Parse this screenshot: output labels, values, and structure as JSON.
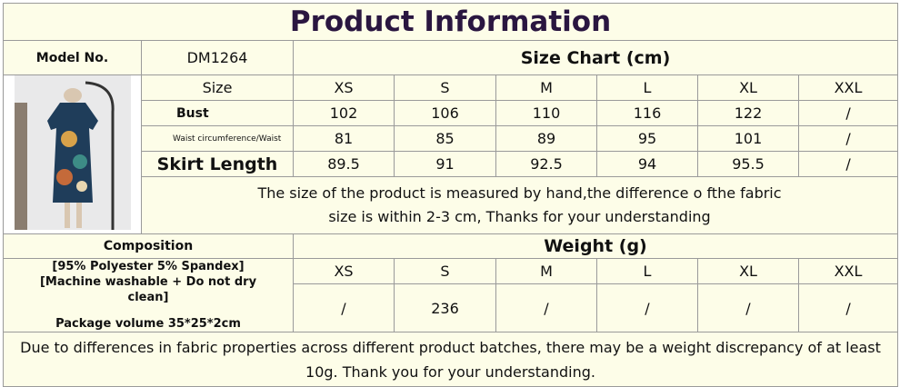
{
  "header": {
    "title": "Product Information"
  },
  "model": {
    "label": "Model No.",
    "value": "DM1264"
  },
  "size_chart": {
    "title": "Size Chart (cm)",
    "header": [
      "Size",
      "XS",
      "S",
      "M",
      "L",
      "XL",
      "XXL"
    ],
    "rows": [
      [
        "Bust",
        "102",
        "106",
        "110",
        "116",
        "122",
        "/"
      ],
      [
        "Waist circumference/Waist",
        "81",
        "85",
        "89",
        "95",
        "101",
        "/"
      ],
      [
        "Skirt Length",
        "89.5",
        "91",
        "92.5",
        "94",
        "95.5",
        "/"
      ]
    ],
    "note": "The size of the product is measured by hand,the difference o fthe fabric size is within 2-3 cm, Thanks for your understanding"
  },
  "composition": {
    "label": "Composition",
    "material": "[95% Polyester 5% Spandex] [Machine washable + Do not dry clean]",
    "package": "Package volume 35*25*2cm"
  },
  "weight": {
    "title": "Weight (g)",
    "sizes": [
      "XS",
      "S",
      "M",
      "L",
      "XL",
      "XXL"
    ],
    "values": [
      "/",
      "236",
      "/",
      "/",
      "/",
      "/"
    ]
  },
  "footer": "Due to differences in fabric properties across different product batches, there may be a weight discrepancy of at least 10g. Thank you for your understanding."
}
